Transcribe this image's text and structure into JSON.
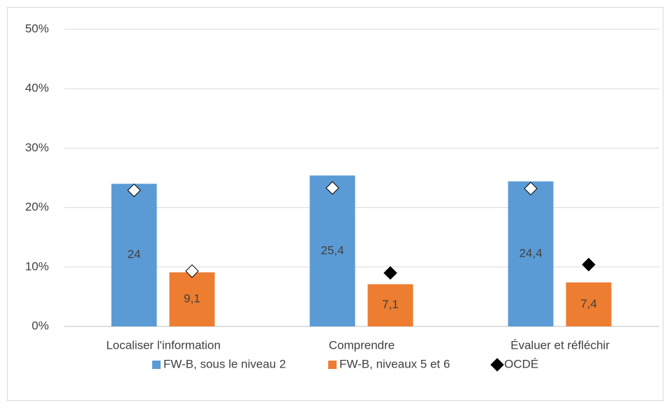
{
  "chart_data": {
    "type": "bar",
    "categories": [
      "Localiser l'information",
      "Comprendre",
      "Évaluer et réfléchir"
    ],
    "series": [
      {
        "name": "FW-B, sous le niveau 2",
        "color": "#5b9bd5",
        "values": [
          24,
          25.4,
          24.4
        ],
        "value_labels": [
          "24",
          "25,4",
          "24,4"
        ]
      },
      {
        "name": "FW-B, niveaux 5 et 6",
        "color": "#ed7d31",
        "values": [
          9.1,
          7.1,
          7.4
        ],
        "value_labels": [
          "9,1",
          "7,1",
          "7,4"
        ]
      },
      {
        "name": "OCDÉ",
        "type": "marker",
        "color": "#000000",
        "values": [
          [
            22.9,
            9.3
          ],
          [
            23.3,
            9.0
          ],
          [
            23.2,
            10.4
          ]
        ],
        "fills": [
          [
            "#ffffff",
            "#ffffff"
          ],
          [
            "#ffffff",
            "#000000"
          ],
          [
            "#ffffff",
            "#000000"
          ]
        ]
      }
    ],
    "ylim": [
      0,
      50
    ],
    "yticks": [
      {
        "value": 0,
        "label": "0%"
      },
      {
        "value": 10,
        "label": "10%"
      },
      {
        "value": 20,
        "label": "20%"
      },
      {
        "value": 30,
        "label": "30%"
      },
      {
        "value": 40,
        "label": "40%"
      },
      {
        "value": 50,
        "label": "50%"
      }
    ],
    "grid": true,
    "legend": "bottom"
  }
}
